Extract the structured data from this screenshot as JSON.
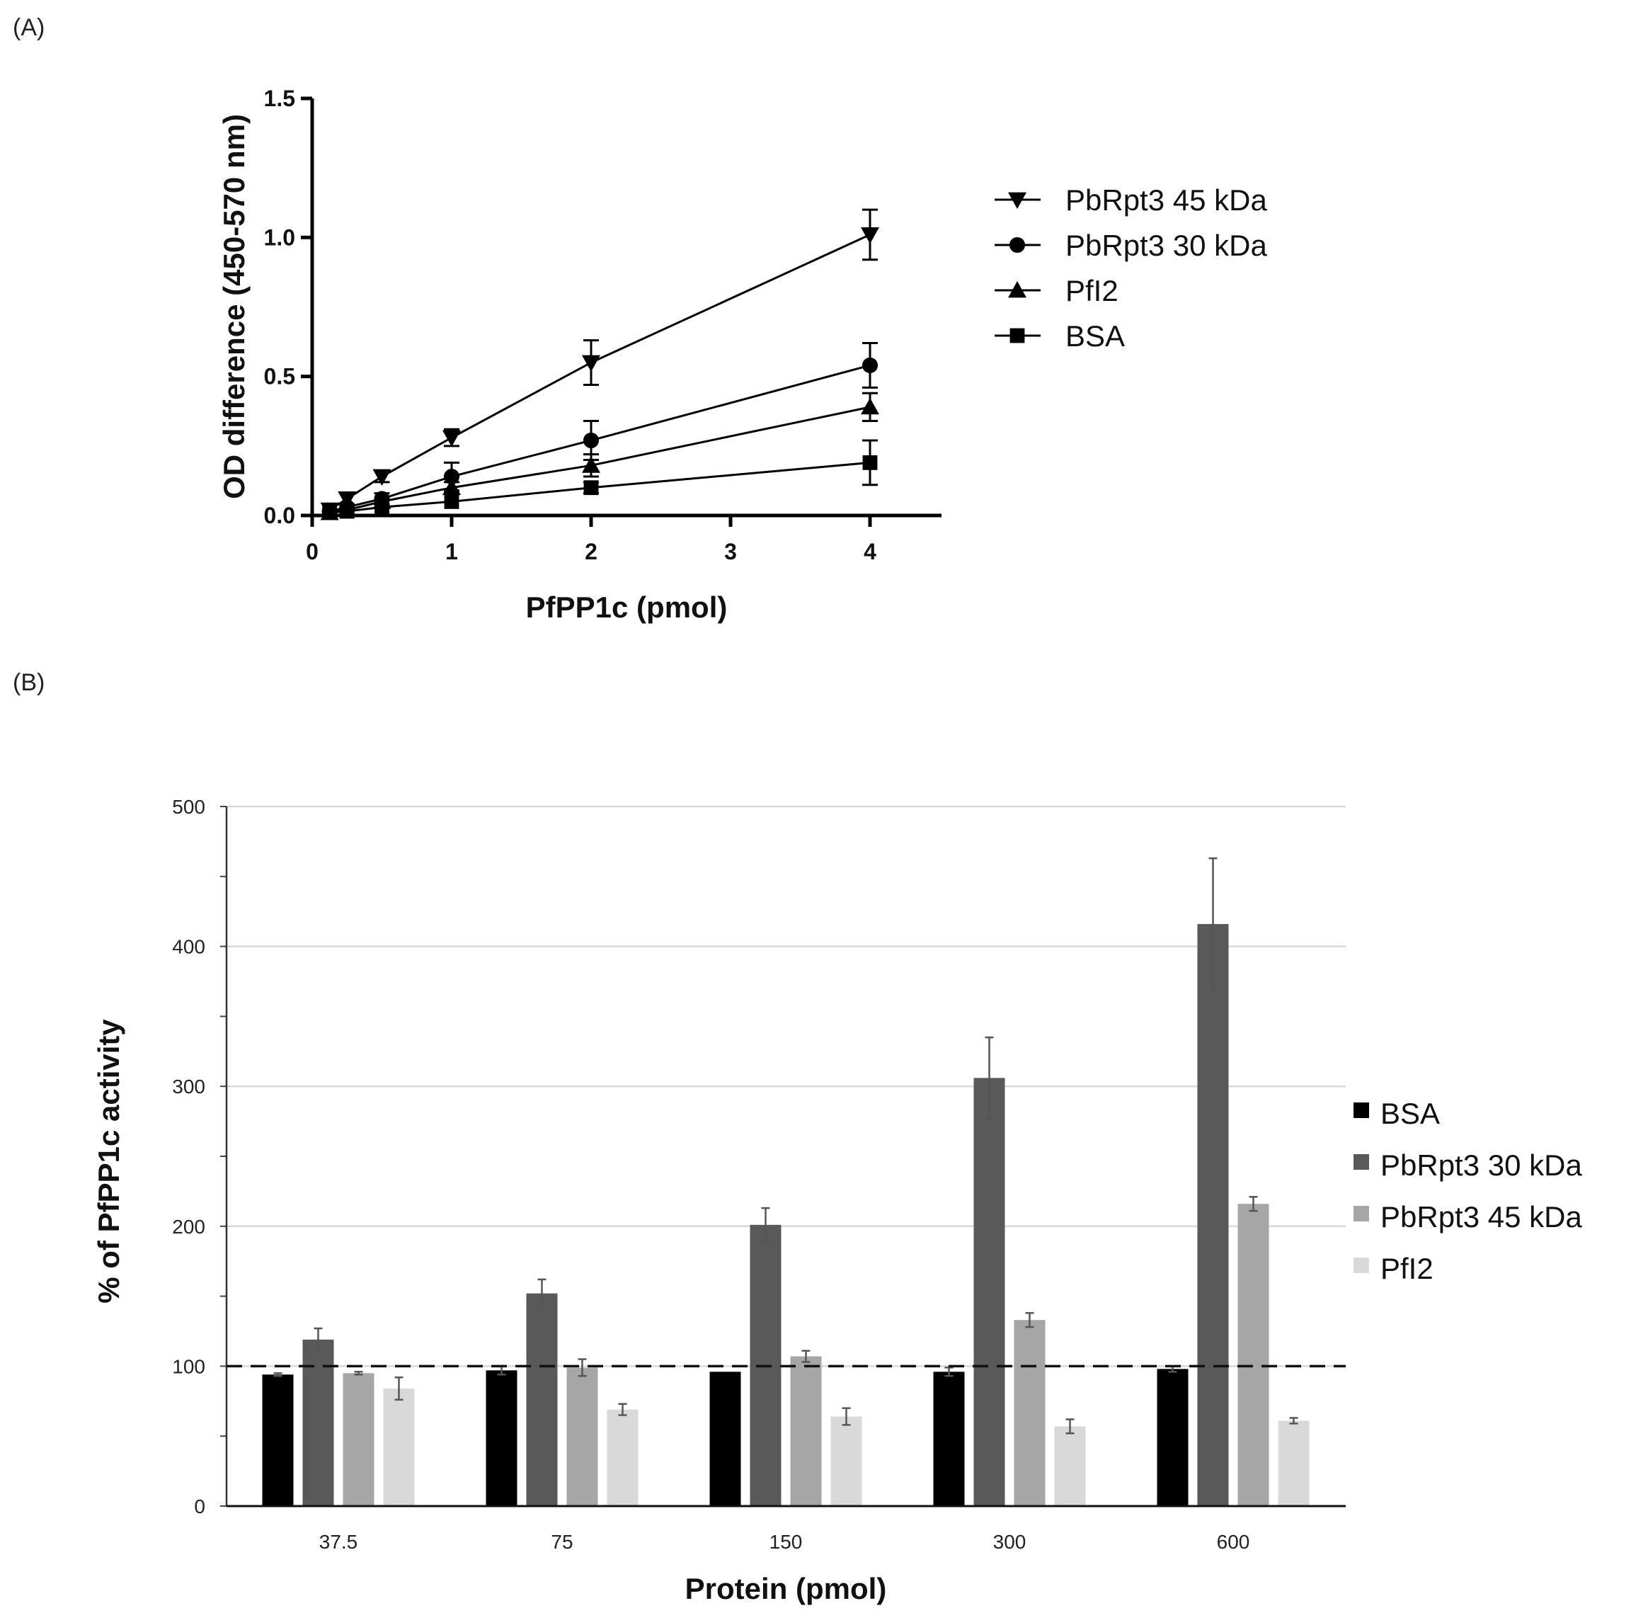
{
  "chart_data": [
    {
      "panel_label": "(A)",
      "type": "line",
      "xlabel": "PfPP1c (pmol)",
      "ylabel": "OD difference (450-570 nm)",
      "xlim": [
        0,
        4.5
      ],
      "ylim": [
        0,
        1.5
      ],
      "xticks": [
        "0",
        "1",
        "2",
        "3",
        "4"
      ],
      "yticks": [
        "0.0",
        "0.5",
        "1.0",
        "1.5"
      ],
      "legend_position": "right",
      "x": [
        0.125,
        0.25,
        0.5,
        1,
        2,
        4
      ],
      "series": [
        {
          "name": "PbRpt3 45 kDa",
          "marker": "triangle-down",
          "values": [
            0.02,
            0.06,
            0.14,
            0.28,
            0.55,
            1.01
          ],
          "errors": [
            0.01,
            0.02,
            0.02,
            0.03,
            0.08,
            0.09
          ]
        },
        {
          "name": "PbRpt3 30 kDa",
          "marker": "circle",
          "values": [
            0.015,
            0.03,
            0.06,
            0.14,
            0.27,
            0.54
          ],
          "errors": [
            0.01,
            0.01,
            0.02,
            0.05,
            0.07,
            0.08
          ]
        },
        {
          "name": "PfI2",
          "marker": "triangle-up",
          "values": [
            0.01,
            0.02,
            0.05,
            0.1,
            0.18,
            0.39
          ],
          "errors": [
            0.01,
            0.01,
            0.01,
            0.02,
            0.04,
            0.05
          ]
        },
        {
          "name": "BSA",
          "marker": "square",
          "values": [
            0.01,
            0.015,
            0.03,
            0.05,
            0.1,
            0.19
          ],
          "errors": [
            0.005,
            0.01,
            0.01,
            0.01,
            0.02,
            0.08
          ]
        }
      ]
    },
    {
      "panel_label": "(B)",
      "type": "bar",
      "xlabel": "Protein (pmol)",
      "ylabel": "% of PfPP1c activity",
      "ylim": [
        0,
        500
      ],
      "yticks": [
        "0",
        "100",
        "200",
        "300",
        "400",
        "500"
      ],
      "grid": true,
      "reference_line": 100,
      "legend_position": "right",
      "categories": [
        "37.5",
        "75",
        "150",
        "300",
        "600"
      ],
      "series": [
        {
          "name": "BSA",
          "color": "#000000",
          "values": [
            94,
            97,
            96,
            96,
            98
          ],
          "errors": [
            1,
            3,
            0,
            3,
            2
          ]
        },
        {
          "name": "PbRpt3 30 kDa",
          "color": "#595959",
          "values": [
            119,
            152,
            201,
            306,
            416
          ],
          "errors": [
            8,
            10,
            12,
            29,
            47
          ]
        },
        {
          "name": "PbRpt3 45 kDa",
          "color": "#a6a6a6",
          "values": [
            95,
            99,
            107,
            133,
            216
          ],
          "errors": [
            1,
            6,
            4,
            5,
            5
          ]
        },
        {
          "name": "PfI2",
          "color": "#d9d9d9",
          "values": [
            84,
            69,
            64,
            57,
            61
          ],
          "errors": [
            8,
            4,
            6,
            5,
            2
          ]
        }
      ]
    }
  ]
}
